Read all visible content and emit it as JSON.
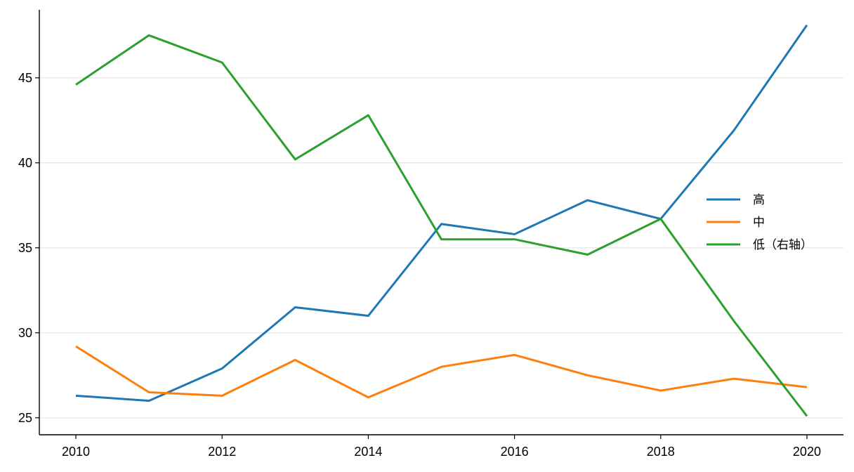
{
  "chart_data": {
    "type": "line",
    "title": "",
    "xlabel": "",
    "ylabel": "",
    "x": [
      2010,
      2011,
      2012,
      2013,
      2014,
      2015,
      2016,
      2017,
      2018,
      2019,
      2020
    ],
    "x_ticks": [
      "2010",
      "2012",
      "2014",
      "2016",
      "2018",
      "2020"
    ],
    "y_ticks": [
      "25",
      "30",
      "35",
      "40",
      "45"
    ],
    "xlim": [
      2009.5,
      2020.5
    ],
    "ylim": [
      24,
      49
    ],
    "grid": "horizontal",
    "legend_position": "right",
    "series": [
      {
        "name": "高",
        "color": "#1f77b4",
        "values": [
          26.3,
          26.0,
          27.9,
          31.5,
          31.0,
          36.4,
          35.8,
          37.8,
          36.7,
          41.9,
          48.1
        ]
      },
      {
        "name": "中",
        "color": "#ff7f0e",
        "values": [
          29.2,
          26.5,
          26.3,
          28.4,
          26.2,
          28.0,
          28.7,
          27.5,
          26.6,
          27.3,
          26.8
        ]
      },
      {
        "name": "低（右轴）",
        "color": "#2ca02c",
        "values": [
          44.6,
          47.5,
          45.9,
          40.2,
          42.8,
          35.5,
          35.5,
          34.6,
          36.7,
          30.7,
          25.1
        ]
      }
    ]
  }
}
